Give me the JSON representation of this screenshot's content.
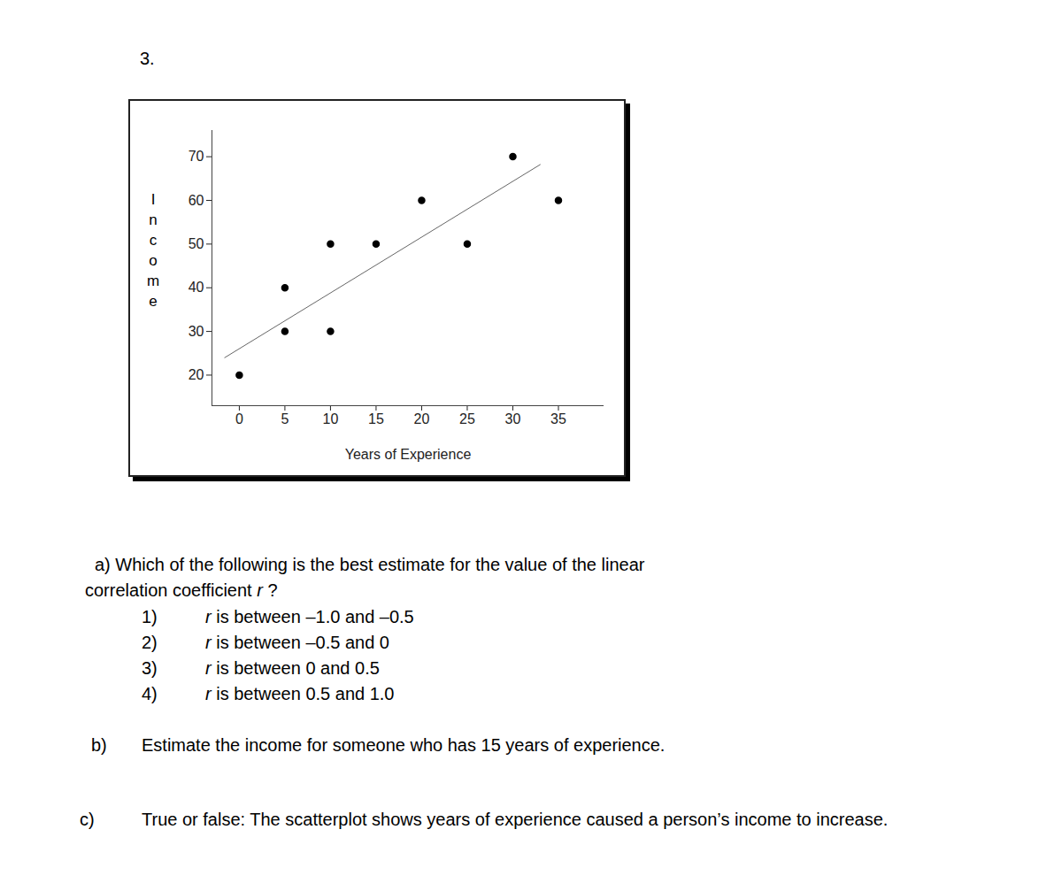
{
  "problem_number": "3.",
  "chart_data": {
    "type": "scatter",
    "x": [
      0,
      5,
      5,
      10,
      10,
      15,
      20,
      25,
      30,
      35
    ],
    "values": [
      20,
      30,
      40,
      30,
      50,
      50,
      60,
      50,
      70,
      60
    ],
    "trend_line": {
      "x": [
        -1.6,
        33
      ],
      "values": [
        24,
        68.2
      ]
    },
    "xlabel": "Years of Experience",
    "ylabel": "Income",
    "xlim": [
      -3,
      40
    ],
    "ylim": [
      13,
      76
    ],
    "xticks": [
      0,
      5,
      10,
      15,
      20,
      25,
      30,
      35
    ],
    "yticks": [
      20,
      30,
      40,
      50,
      60,
      70
    ],
    "color": "#000000",
    "marker": "circle",
    "grid": false
  },
  "questions": {
    "a": {
      "label": "a)",
      "lines": [
        "Which of the following is the best estimate for the value of the linear",
        "correlation coefficient r ?"
      ],
      "choices": [
        {
          "label": "1)",
          "text": "r is between –1.0 and –0.5"
        },
        {
          "label": "2)",
          "text": "r is between –0.5 and 0"
        },
        {
          "label": "3)",
          "text": "r is between 0 and 0.5"
        },
        {
          "label": "4)",
          "text": "r is between 0.5 and 1.0"
        }
      ]
    },
    "b": {
      "label": "b)",
      "text": "Estimate the income for someone who has 15 years of experience."
    },
    "c": {
      "label": "c)",
      "text": "True or false: The scatterplot shows years of experience caused a person’s income to increase."
    }
  }
}
